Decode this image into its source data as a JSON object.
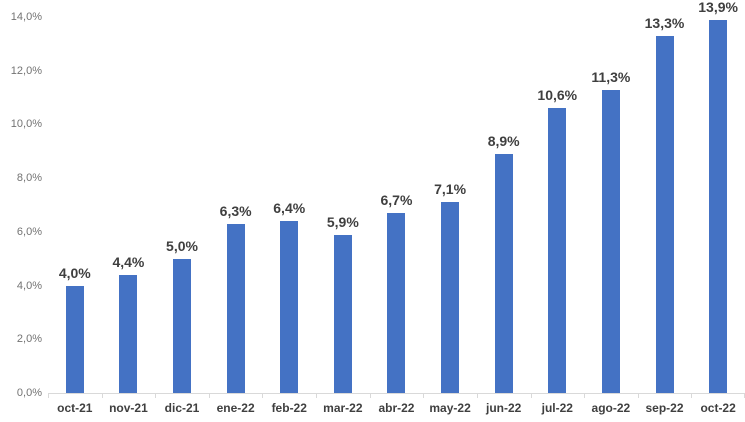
{
  "chart_data": {
    "type": "bar",
    "title": "",
    "xlabel": "",
    "ylabel": "",
    "categories": [
      "oct-21",
      "nov-21",
      "dic-21",
      "ene-22",
      "feb-22",
      "mar-22",
      "abr-22",
      "may-22",
      "jun-22",
      "jul-22",
      "ago-22",
      "sep-22",
      "oct-22"
    ],
    "values": [
      4.0,
      4.4,
      5.0,
      6.3,
      6.4,
      5.9,
      6.7,
      7.1,
      8.9,
      10.6,
      11.3,
      13.3,
      13.9
    ],
    "value_labels": [
      "4,0%",
      "4,4%",
      "5,0%",
      "6,3%",
      "6,4%",
      "5,9%",
      "6,7%",
      "7,1%",
      "8,9%",
      "10,6%",
      "11,3%",
      "13,3%",
      "13,9%"
    ],
    "ylim": [
      0,
      14
    ],
    "y_tick_values": [
      0,
      2,
      4,
      6,
      8,
      10,
      12,
      14
    ],
    "y_tick_labels": [
      "0,0%",
      "2,0%",
      "4,0%",
      "6,0%",
      "8,0%",
      "10,0%",
      "12,0%",
      "14,0%"
    ],
    "grid": false,
    "legend_position": "none",
    "colors": {
      "bar": "#4472C4",
      "axis_line": "#D9D9D9",
      "data_label": "#3F3F3F",
      "category_label": "#3F3F3F",
      "y_tick_label": "#737373",
      "background": "#FFFFFF"
    }
  }
}
